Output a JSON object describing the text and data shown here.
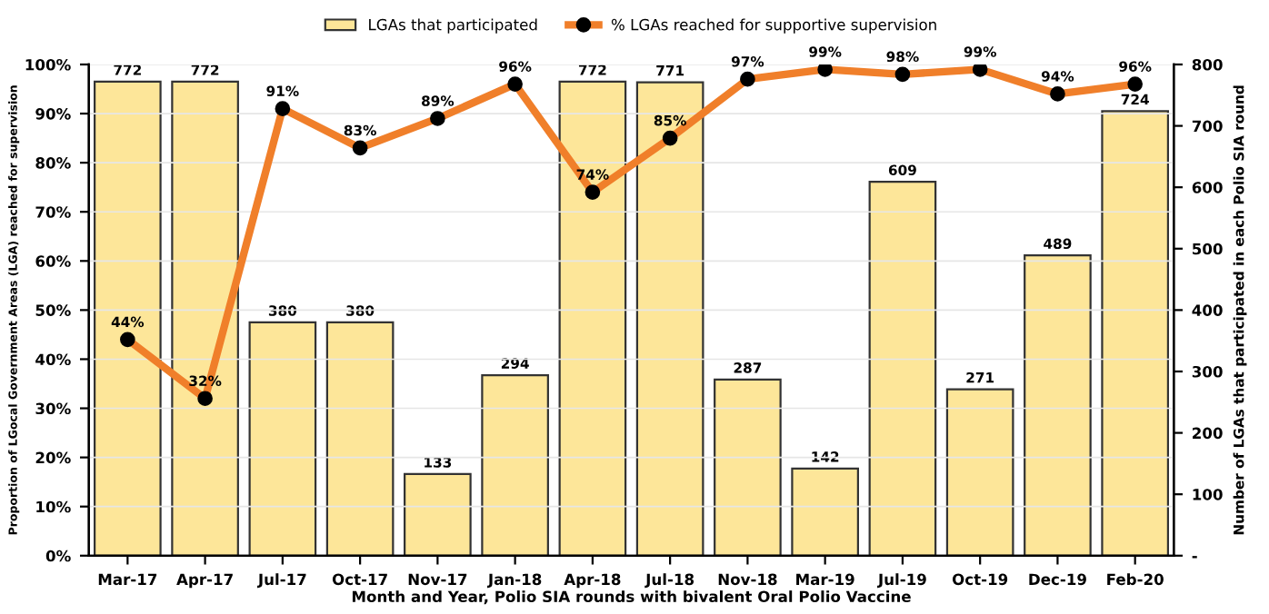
{
  "chart_data": {
    "type": "bar",
    "categories": [
      "Mar-17",
      "Apr-17",
      "Jul-17",
      "Oct-17",
      "Nov-17",
      "Jan-18",
      "Apr-18",
      "Jul-18",
      "Nov-18",
      "Mar-19",
      "Jul-19",
      "Oct-19",
      "Dec-19",
      "Feb-20"
    ],
    "series": [
      {
        "name": "LGAs that participated",
        "axis": "y2",
        "color": "#fde699",
        "values": [
          772,
          772,
          380,
          380,
          133,
          294,
          772,
          771,
          287,
          142,
          609,
          271,
          489,
          724
        ],
        "value_labels": [
          "772",
          "772",
          "380",
          "380",
          "133",
          "294",
          "772",
          "771",
          "287",
          "142",
          "609",
          "271",
          "489",
          "724"
        ]
      },
      {
        "name": "% LGAs reached for supportive supervision",
        "type": "line",
        "color": "#f07f2a",
        "marker": "circle",
        "values": [
          44,
          32,
          91,
          83,
          89,
          96,
          74,
          85,
          97,
          99,
          98,
          99,
          94,
          96
        ],
        "value_labels": [
          "44%",
          "32%",
          "91%",
          "83%",
          "89%",
          "96%",
          "74%",
          "85%",
          "97%",
          "99%",
          "98%",
          "99%",
          "94%",
          "96%"
        ]
      }
    ],
    "xlabel": "Month and Year, Polio SIA rounds with bivalent Oral Polio Vaccine",
    "ylabel": "Proportion of LGocal Government Areas (LGA) reached for supervision",
    "y2label": "Number of LGAs that participated in each Polio SIA round",
    "ylim": [
      0,
      100
    ],
    "yticks": [
      {
        "value": 0,
        "label": "0%"
      },
      {
        "value": 10,
        "label": "10%"
      },
      {
        "value": 20,
        "label": "20%"
      },
      {
        "value": 30,
        "label": "30%"
      },
      {
        "value": 40,
        "label": "40%"
      },
      {
        "value": 50,
        "label": "50%"
      },
      {
        "value": 60,
        "label": "60%"
      },
      {
        "value": 70,
        "label": "70%"
      },
      {
        "value": 80,
        "label": "80%"
      },
      {
        "value": 90,
        "label": "90%"
      },
      {
        "value": 100,
        "label": "100%"
      }
    ],
    "y2lim": [
      0,
      800
    ],
    "y2ticks": [
      {
        "value": 0,
        "label": "-"
      },
      100,
      200,
      300,
      400,
      500,
      600,
      700,
      800
    ],
    "grid": "y",
    "legend": "top"
  }
}
